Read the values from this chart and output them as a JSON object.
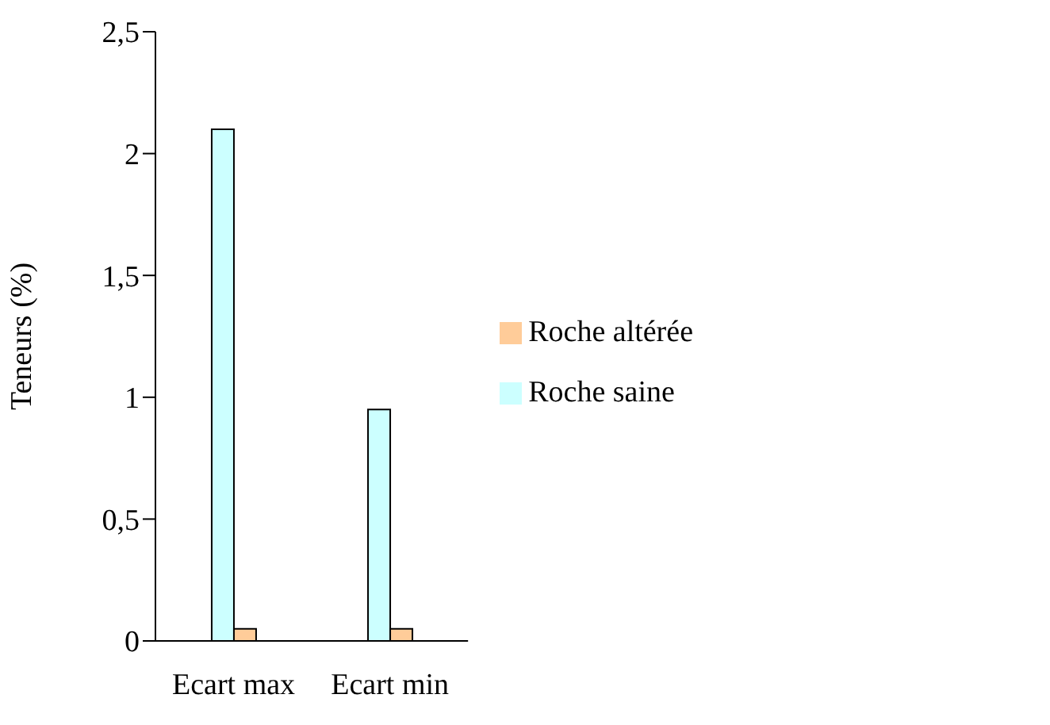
{
  "chart_data": {
    "type": "bar",
    "ylabel": "Teneurs (%)",
    "categories": [
      "Ecart max",
      "Ecart min"
    ],
    "series": [
      {
        "name": "Roche saine",
        "color": "#ccffff",
        "values": [
          2.1,
          0.95
        ]
      },
      {
        "name": "Roche altérée",
        "color": "#ffcc99",
        "values": [
          0.05,
          0.05
        ]
      }
    ],
    "ylim": [
      0,
      2.5
    ],
    "yticks": [
      0,
      {
        "value": 0.5,
        "label": "0,5"
      },
      1,
      {
        "value": 1.5,
        "label": "1,5"
      },
      2,
      {
        "value": 2.5,
        "label": "2,5"
      }
    ],
    "grid": false,
    "legend": "right"
  }
}
